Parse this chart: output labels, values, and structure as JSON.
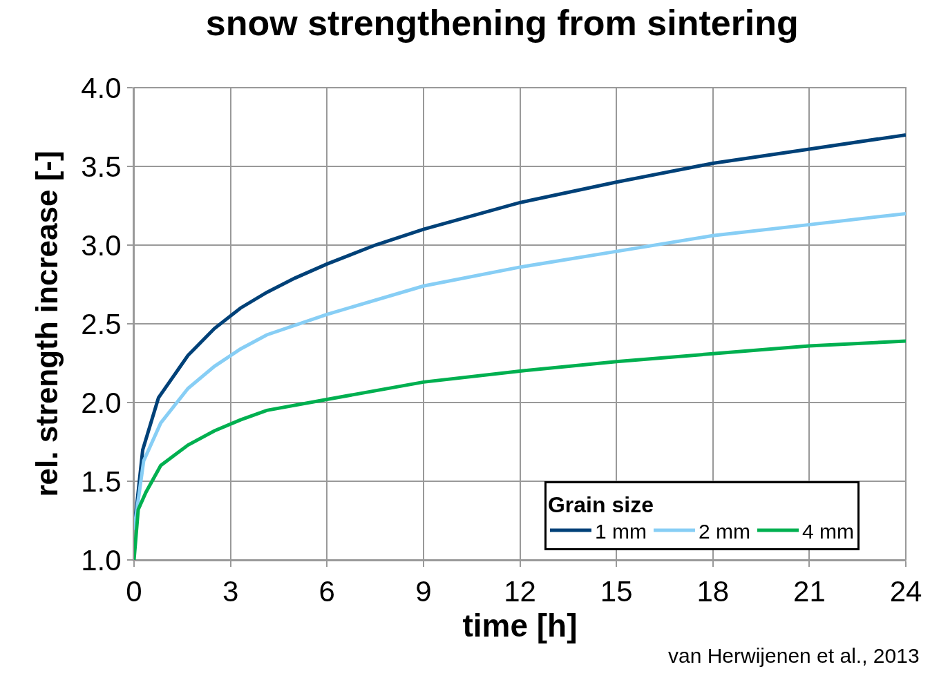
{
  "chart_data": {
    "type": "line",
    "title": "snow strengthening from sintering",
    "xlabel": "time [h]",
    "ylabel": "rel. strength increase [-]",
    "legend_title": "Grain size",
    "legend": "bottom right",
    "grid": true,
    "marker": "none",
    "line_style": "solid",
    "xlim": [
      0,
      24
    ],
    "xticks": [
      0,
      3,
      6,
      9,
      12,
      15,
      18,
      21,
      24
    ],
    "ylim": [
      1.0,
      4.0
    ],
    "yticks": [
      {
        "value": 1.0,
        "label": "1.0"
      },
      {
        "value": 1.5,
        "label": "1.5"
      },
      {
        "value": 2.0,
        "label": "2.0"
      },
      {
        "value": 2.5,
        "label": "2.5"
      },
      {
        "value": 3.0,
        "label": "3.0"
      },
      {
        "value": 3.5,
        "label": "3.5"
      },
      {
        "value": 4.0,
        "label": "4.0"
      }
    ],
    "annotations": [
      "van Herwijenen et al., 2013"
    ],
    "series": [
      {
        "name": "1 mm",
        "color": "#004178",
        "x": [
          0,
          0.27,
          0.76,
          1.68,
          2.5,
          3.31,
          4.13,
          5,
          6,
          7.5,
          9,
          12,
          15,
          18,
          21,
          24
        ],
        "values": [
          1.19,
          1.7,
          2.03,
          2.3,
          2.47,
          2.6,
          2.7,
          2.79,
          2.88,
          3.0,
          3.1,
          3.27,
          3.4,
          3.52,
          3.61,
          3.7
        ]
      },
      {
        "name": "2 mm",
        "color": "#87cef5",
        "x": [
          0,
          0.3,
          0.83,
          1.68,
          2.5,
          3.31,
          4.13,
          6,
          9,
          12,
          15,
          18,
          21,
          24
        ],
        "values": [
          1.19,
          1.63,
          1.87,
          2.09,
          2.23,
          2.34,
          2.43,
          2.56,
          2.74,
          2.86,
          2.96,
          3.06,
          3.13,
          3.2
        ]
      },
      {
        "name": "4 mm",
        "color": "#00b050",
        "x": [
          0,
          0.13,
          0.37,
          0.83,
          1.68,
          2.5,
          3.31,
          4.13,
          6,
          9,
          12,
          15,
          18,
          21,
          24
        ],
        "values": [
          1.0,
          1.32,
          1.43,
          1.6,
          1.73,
          1.82,
          1.89,
          1.95,
          2.02,
          2.13,
          2.2,
          2.26,
          2.31,
          2.36,
          2.39
        ]
      }
    ]
  }
}
